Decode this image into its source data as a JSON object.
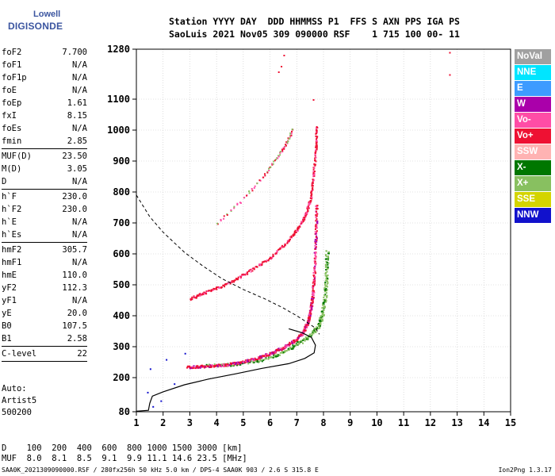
{
  "logo": {
    "line1": "Lowell",
    "line2": "DIGISONDE"
  },
  "header": {
    "line1": "Station YYYY DAY  DDD HHMMSS P1  FFS S AXN PPS IGA PS",
    "line2": "SaoLuis 2021 Nov05 309 090000 RSF    1 715 100 00- 11"
  },
  "params": [
    [
      {
        "k": "foF2",
        "v": "7.700"
      },
      {
        "k": "foF1",
        "v": "N/A"
      },
      {
        "k": "foF1p",
        "v": "N/A"
      },
      {
        "k": "foE",
        "v": "N/A"
      },
      {
        "k": "foEp",
        "v": "1.61"
      },
      {
        "k": "fxI",
        "v": "8.15"
      },
      {
        "k": "foEs",
        "v": "N/A"
      },
      {
        "k": "fmin",
        "v": "2.85"
      }
    ],
    [
      {
        "k": "MUF(D)",
        "v": "23.50"
      },
      {
        "k": "M(D)",
        "v": "3.05"
      },
      {
        "k": "D",
        "v": "N/A"
      }
    ],
    [
      {
        "k": "h`F",
        "v": "230.0"
      },
      {
        "k": "h`F2",
        "v": "230.0"
      },
      {
        "k": "h`E",
        "v": "N/A"
      },
      {
        "k": "h`Es",
        "v": "N/A"
      }
    ],
    [
      {
        "k": "hmF2",
        "v": "305.7"
      },
      {
        "k": "hmF1",
        "v": "N/A"
      },
      {
        "k": "hmE",
        "v": "110.0"
      },
      {
        "k": "yF2",
        "v": "112.3"
      },
      {
        "k": "yF1",
        "v": "N/A"
      },
      {
        "k": "yE",
        "v": "20.0"
      },
      {
        "k": "B0",
        "v": "107.5"
      },
      {
        "k": "B1",
        "v": "2.58"
      }
    ],
    [
      {
        "k": "C-level",
        "v": "22"
      }
    ]
  ],
  "auto": {
    "line1": "Auto:",
    "line2": "Artist5",
    "line3": "500200"
  },
  "muf_table": {
    "line1": "D    100  200  400  600  800 1000 1500 3000 [km]",
    "line2": "MUF  8.0  8.1  8.5  9.1  9.9 11.1 14.6 23.5 [MHz]"
  },
  "footer": {
    "left": "SAA0K_2021309090000.RSF / 280fx256h 50 kHz 5.0 km / DPS-4 SAA0K 903 / 2.6 S 315.8 E",
    "right": "Ion2Png 1.3.17"
  },
  "legend": [
    {
      "label": "NoVal",
      "color": "#a0a0a0"
    },
    {
      "label": "NNE",
      "color": "#00e5ff"
    },
    {
      "label": "E",
      "color": "#3d9bff"
    },
    {
      "label": "W",
      "color": "#aa00aa"
    },
    {
      "label": "Vo-",
      "color": "#ff4da6"
    },
    {
      "label": "Vo+",
      "color": "#ee1133"
    },
    {
      "label": "SSW",
      "color": "#ffb3b3"
    },
    {
      "label": "X-",
      "color": "#007700"
    },
    {
      "label": "X+",
      "color": "#88c060"
    },
    {
      "label": "SSE",
      "color": "#d4d400"
    },
    {
      "label": "NNW",
      "color": "#1111cc"
    }
  ],
  "chart_data": {
    "type": "scatter",
    "x_ticks": [
      "1",
      "2",
      "3",
      "4",
      "5",
      "6",
      "7",
      "8",
      "9",
      "10",
      "11",
      "12",
      "13",
      "14",
      "15"
    ],
    "y_ticks": [
      "80",
      "200",
      "300",
      "400",
      "500",
      "600",
      "700",
      "800",
      "900",
      "1000",
      "1100",
      "1280"
    ],
    "xlim": [
      1,
      15
    ],
    "y_tick_values": [
      80,
      200,
      300,
      400,
      500,
      600,
      700,
      800,
      900,
      1000,
      1100,
      1280
    ],
    "grid": true,
    "traces": {
      "o_f2": [
        [
          2.9,
          236
        ],
        [
          3.5,
          238
        ],
        [
          4.2,
          242
        ],
        [
          4.8,
          250
        ],
        [
          5.4,
          262
        ],
        [
          6.0,
          280
        ],
        [
          6.5,
          300
        ],
        [
          6.9,
          320
        ],
        [
          7.2,
          345
        ],
        [
          7.4,
          380
        ],
        [
          7.5,
          420
        ],
        [
          7.6,
          480
        ],
        [
          7.65,
          560
        ],
        [
          7.7,
          660
        ],
        [
          7.72,
          760
        ]
      ],
      "x_f2": [
        [
          3.6,
          240
        ],
        [
          4.5,
          244
        ],
        [
          5.5,
          256
        ],
        [
          6.3,
          276
        ],
        [
          7.0,
          310
        ],
        [
          7.5,
          340
        ],
        [
          7.8,
          370
        ],
        [
          7.95,
          410
        ],
        [
          8.05,
          470
        ],
        [
          8.1,
          540
        ],
        [
          8.12,
          610
        ]
      ],
      "o_second": [
        [
          3.0,
          457
        ],
        [
          3.6,
          478
        ],
        [
          4.4,
          505
        ],
        [
          5.2,
          545
        ],
        [
          6.0,
          590
        ],
        [
          6.6,
          638
        ],
        [
          7.0,
          680
        ],
        [
          7.3,
          725
        ],
        [
          7.5,
          780
        ],
        [
          7.6,
          850
        ],
        [
          7.7,
          940
        ],
        [
          7.72,
          1010
        ]
      ],
      "o_upper": [
        [
          4.0,
          700
        ],
        [
          5.0,
          780
        ],
        [
          5.8,
          860
        ],
        [
          6.3,
          920
        ],
        [
          6.6,
          960
        ],
        [
          6.8,
          1000
        ]
      ],
      "scatter_low": [
        [
          1.4,
          150
        ],
        [
          1.6,
          100
        ],
        [
          1.9,
          120
        ],
        [
          2.1,
          260
        ],
        [
          2.4,
          180
        ],
        [
          1.5,
          230
        ],
        [
          2.8,
          280
        ]
      ],
      "high_points": [
        [
          6.4,
          1220
        ],
        [
          6.5,
          1260
        ],
        [
          6.3,
          1200
        ],
        [
          12.7,
          1270
        ],
        [
          12.7,
          1190
        ],
        [
          7.6,
          1100
        ]
      ]
    },
    "profile_solid": [
      [
        1.0,
        82
      ],
      [
        1.45,
        85
      ],
      [
        1.5,
        110
      ],
      [
        1.6,
        135
      ],
      [
        2.0,
        150
      ],
      [
        2.8,
        175
      ],
      [
        3.7,
        195
      ],
      [
        4.7,
        212
      ],
      [
        5.7,
        230
      ],
      [
        6.7,
        245
      ],
      [
        7.3,
        262
      ],
      [
        7.65,
        280
      ],
      [
        7.7,
        305
      ],
      [
        7.55,
        330
      ],
      [
        7.2,
        345
      ],
      [
        6.7,
        358
      ]
    ],
    "profile_dashed": [
      [
        1.0,
        790
      ],
      [
        1.5,
        720
      ],
      [
        2.0,
        670
      ],
      [
        2.8,
        605
      ],
      [
        3.5,
        560
      ],
      [
        4.2,
        520
      ],
      [
        5.0,
        485
      ],
      [
        5.8,
        455
      ],
      [
        6.5,
        425
      ],
      [
        7.0,
        400
      ],
      [
        7.4,
        378
      ],
      [
        7.7,
        360
      ],
      [
        7.85,
        340
      ]
    ]
  }
}
